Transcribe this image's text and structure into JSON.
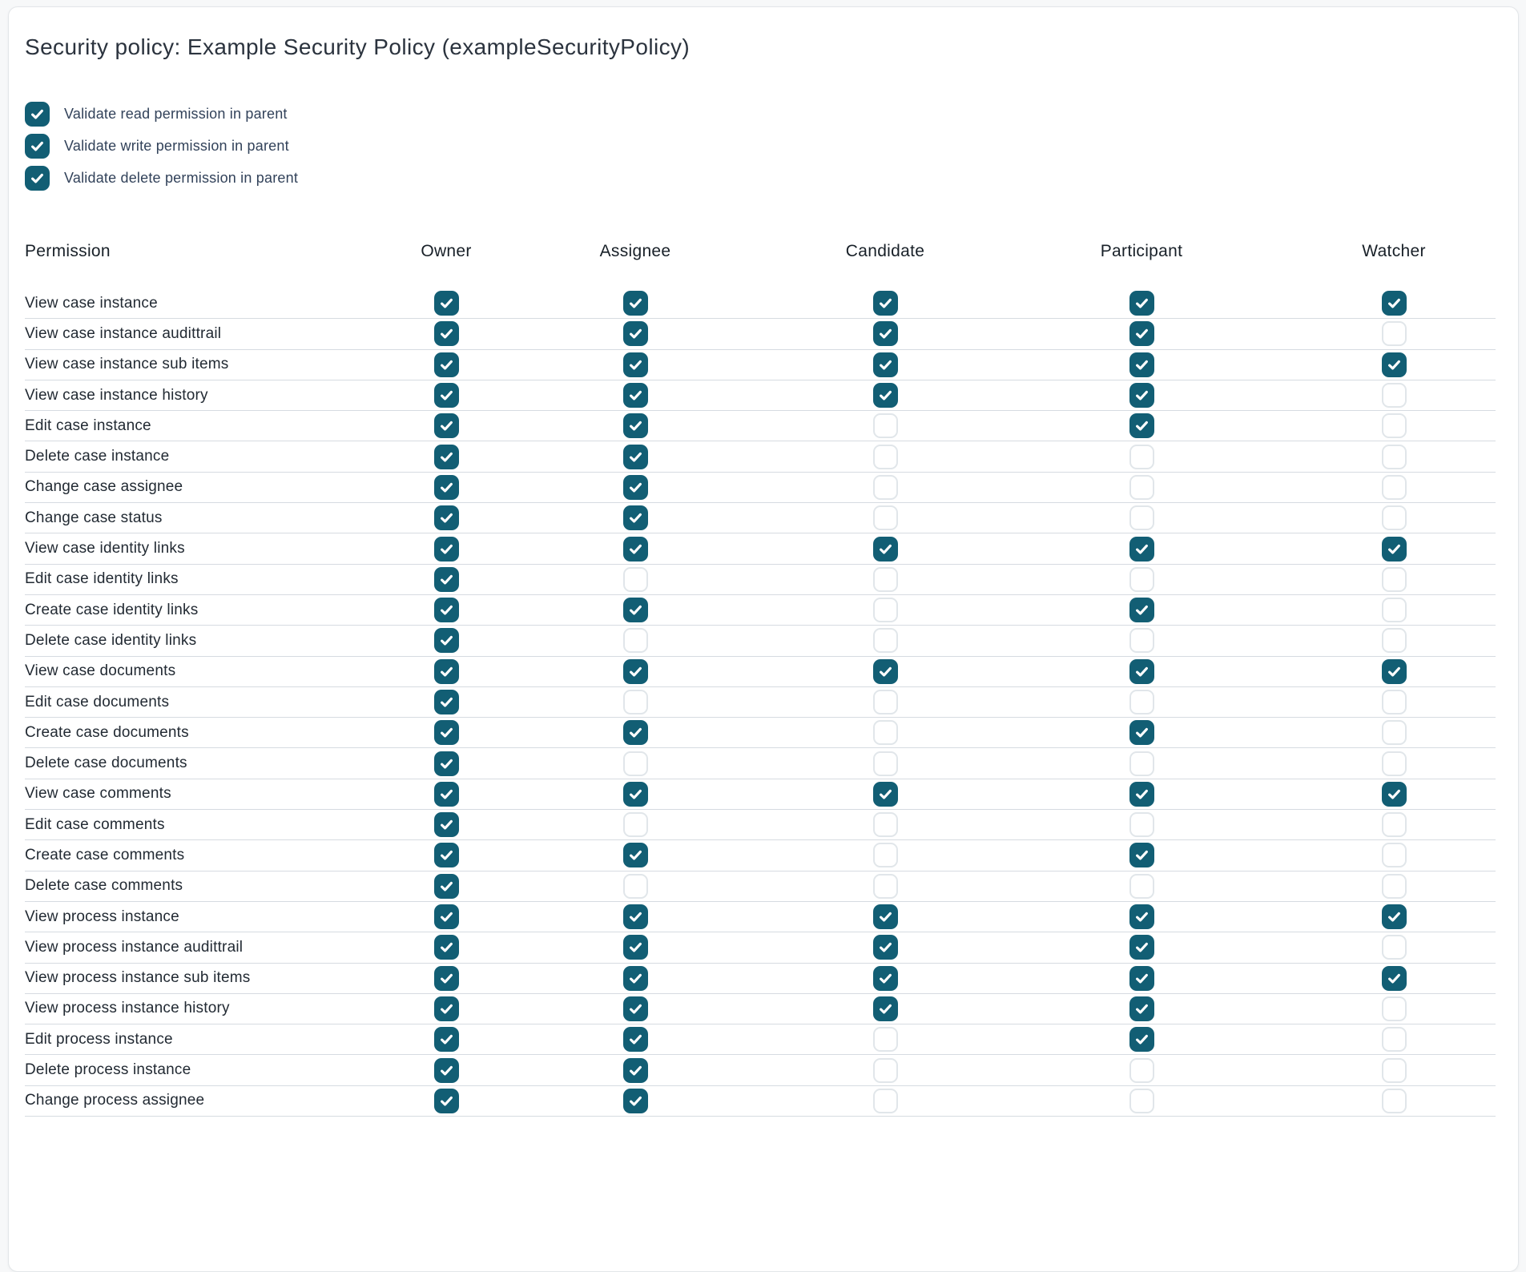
{
  "title": "Security policy: Example Security Policy (exampleSecurityPolicy)",
  "colors": {
    "accent_teal": "#125e74",
    "row_divider": "#d6dbe1",
    "unchecked_border": "#e1e6ea"
  },
  "parent_validation": {
    "items": [
      {
        "label": "Validate read permission in parent",
        "checked": true
      },
      {
        "label": "Validate write permission in parent",
        "checked": true
      },
      {
        "label": "Validate delete permission in parent",
        "checked": true
      }
    ]
  },
  "table": {
    "columns": [
      "Permission",
      "Owner",
      "Assignee",
      "Candidate",
      "Participant",
      "Watcher"
    ],
    "rows": [
      {
        "permission": "View case instance",
        "owner": true,
        "assignee": true,
        "candidate": true,
        "participant": true,
        "watcher": true
      },
      {
        "permission": "View case instance audittrail",
        "owner": true,
        "assignee": true,
        "candidate": true,
        "participant": true,
        "watcher": false
      },
      {
        "permission": "View case instance sub items",
        "owner": true,
        "assignee": true,
        "candidate": true,
        "participant": true,
        "watcher": true
      },
      {
        "permission": "View case instance history",
        "owner": true,
        "assignee": true,
        "candidate": true,
        "participant": true,
        "watcher": false
      },
      {
        "permission": "Edit case instance",
        "owner": true,
        "assignee": true,
        "candidate": false,
        "participant": true,
        "watcher": false
      },
      {
        "permission": "Delete case instance",
        "owner": true,
        "assignee": true,
        "candidate": false,
        "participant": false,
        "watcher": false
      },
      {
        "permission": "Change case assignee",
        "owner": true,
        "assignee": true,
        "candidate": false,
        "participant": false,
        "watcher": false
      },
      {
        "permission": "Change case status",
        "owner": true,
        "assignee": true,
        "candidate": false,
        "participant": false,
        "watcher": false
      },
      {
        "permission": "View case identity links",
        "owner": true,
        "assignee": true,
        "candidate": true,
        "participant": true,
        "watcher": true
      },
      {
        "permission": "Edit case identity links",
        "owner": true,
        "assignee": false,
        "candidate": false,
        "participant": false,
        "watcher": false
      },
      {
        "permission": "Create case identity links",
        "owner": true,
        "assignee": true,
        "candidate": false,
        "participant": true,
        "watcher": false
      },
      {
        "permission": "Delete case identity links",
        "owner": true,
        "assignee": false,
        "candidate": false,
        "participant": false,
        "watcher": false
      },
      {
        "permission": "View case documents",
        "owner": true,
        "assignee": true,
        "candidate": true,
        "participant": true,
        "watcher": true
      },
      {
        "permission": "Edit case documents",
        "owner": true,
        "assignee": false,
        "candidate": false,
        "participant": false,
        "watcher": false
      },
      {
        "permission": "Create case documents",
        "owner": true,
        "assignee": true,
        "candidate": false,
        "participant": true,
        "watcher": false
      },
      {
        "permission": "Delete case documents",
        "owner": true,
        "assignee": false,
        "candidate": false,
        "participant": false,
        "watcher": false
      },
      {
        "permission": "View case comments",
        "owner": true,
        "assignee": true,
        "candidate": true,
        "participant": true,
        "watcher": true
      },
      {
        "permission": "Edit case comments",
        "owner": true,
        "assignee": false,
        "candidate": false,
        "participant": false,
        "watcher": false
      },
      {
        "permission": "Create case comments",
        "owner": true,
        "assignee": true,
        "candidate": false,
        "participant": true,
        "watcher": false
      },
      {
        "permission": "Delete case comments",
        "owner": true,
        "assignee": false,
        "candidate": false,
        "participant": false,
        "watcher": false
      },
      {
        "permission": "View process instance",
        "owner": true,
        "assignee": true,
        "candidate": true,
        "participant": true,
        "watcher": true
      },
      {
        "permission": "View process instance audittrail",
        "owner": true,
        "assignee": true,
        "candidate": true,
        "participant": true,
        "watcher": false
      },
      {
        "permission": "View process instance sub items",
        "owner": true,
        "assignee": true,
        "candidate": true,
        "participant": true,
        "watcher": true
      },
      {
        "permission": "View process instance history",
        "owner": true,
        "assignee": true,
        "candidate": true,
        "participant": true,
        "watcher": false
      },
      {
        "permission": "Edit process instance",
        "owner": true,
        "assignee": true,
        "candidate": false,
        "participant": true,
        "watcher": false
      },
      {
        "permission": "Delete process instance",
        "owner": true,
        "assignee": true,
        "candidate": false,
        "participant": false,
        "watcher": false
      },
      {
        "permission": "Change process assignee",
        "owner": true,
        "assignee": true,
        "candidate": false,
        "participant": false,
        "watcher": false
      }
    ]
  }
}
